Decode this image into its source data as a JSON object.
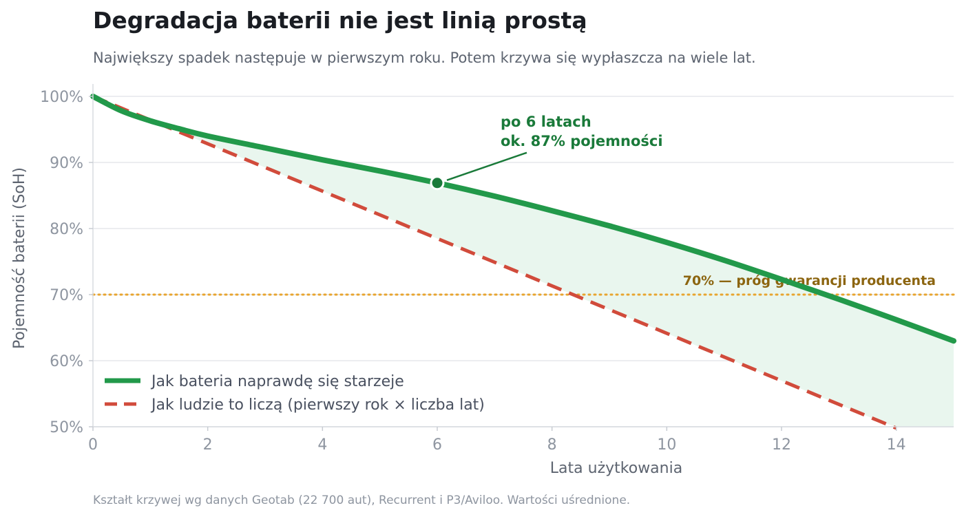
{
  "title": "Degradacja baterii nie jest linią prostą",
  "subtitle": "Największy spadek następuje w pierwszym roku. Potem krzywa się wypłaszcza na wiele lat.",
  "source_note": "Kształt krzywej wg danych Geotab (22 700 aut), Recurrent i P3/Aviloo. Wartości uśrednione.",
  "colors": {
    "real": "#22994a",
    "naive": "#d14b3b",
    "fill": "#e9f6ee",
    "threshold": "#e8a530",
    "annotation": "#1a7a3a",
    "grid": "#e5e7eb"
  },
  "chart_data": {
    "type": "line",
    "xlabel": "Lata użytkowania",
    "ylabel": "Pojemność baterii (SoH)",
    "xlim": [
      0,
      15
    ],
    "ylim": [
      50,
      100
    ],
    "x_ticks": [
      0,
      2,
      4,
      6,
      8,
      10,
      12,
      14
    ],
    "y_ticks": [
      50,
      60,
      70,
      80,
      90,
      100
    ],
    "y_tick_labels": [
      "50%",
      "60%",
      "70%",
      "80%",
      "90%",
      "100%"
    ],
    "grid": "horizontal",
    "legend_position": "bottom-left",
    "series": [
      {
        "name": "Jak bateria naprawdę się starzeje",
        "style": "solid",
        "x": [
          0,
          0.5,
          1,
          1.5,
          2,
          3,
          4,
          5,
          6,
          7,
          8,
          9,
          10,
          11,
          12,
          13,
          14,
          15
        ],
        "values": [
          100,
          97.8,
          96.3,
          95.1,
          94.0,
          92.2,
          90.4,
          88.7,
          86.9,
          84.9,
          82.7,
          80.4,
          77.9,
          75.2,
          72.3,
          69.3,
          66.2,
          63.0
        ]
      },
      {
        "name": "Jak ludzie to liczą (pierwszy rok × liczba lat)",
        "style": "dashed",
        "x": [
          0,
          14
        ],
        "values": [
          100,
          49.8
        ]
      }
    ],
    "reference_line": {
      "y": 70,
      "label": "70% — próg gwarancji producenta"
    },
    "annotation": {
      "x": 6,
      "y": 86.9,
      "lines": [
        "po 6 latach",
        "ok. 87% pojemności"
      ]
    }
  }
}
